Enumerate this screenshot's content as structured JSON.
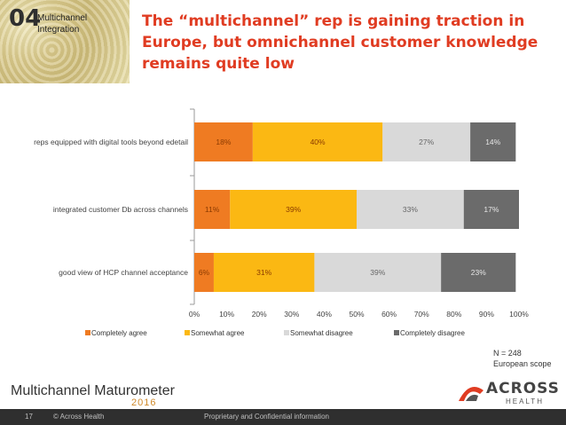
{
  "section": {
    "number": "04",
    "label_line1": "Multichannel",
    "label_line2": "Integration"
  },
  "headline": "The “multichannel” rep is gaining traction in Europe, but omnichannel customer knowledge remains quite low",
  "chart_data": {
    "type": "bar",
    "orientation": "horizontal",
    "stacked": true,
    "categories": [
      "reps equipped with digital tools beyond edetail",
      "integrated customer Db across channels",
      "good view of HCP channel acceptance"
    ],
    "series": [
      {
        "name": "Completely agree",
        "color": "#ef7b22",
        "values": [
          18,
          11,
          6
        ]
      },
      {
        "name": "Somewhat agree",
        "color": "#fbb813",
        "values": [
          40,
          39,
          31
        ]
      },
      {
        "name": "Somewhat disagree",
        "color": "#d9d9d9",
        "values": [
          27,
          33,
          39
        ]
      },
      {
        "name": "Completely disagree",
        "color": "#6b6b6b",
        "values": [
          14,
          17,
          23
        ]
      }
    ],
    "data_labels": [
      [
        "18%",
        "40%",
        "27%",
        "14%"
      ],
      [
        "11%",
        "39%",
        "33%",
        "17%"
      ],
      [
        "6%",
        "31%",
        "39%",
        "23%"
      ]
    ],
    "x_ticks": [
      "0%",
      "10%",
      "20%",
      "30%",
      "40%",
      "50%",
      "60%",
      "70%",
      "80%",
      "90%",
      "100%"
    ],
    "xlim": [
      0,
      100
    ],
    "legend_position": "bottom"
  },
  "note": {
    "line1": "N = 248",
    "line2": "European scope"
  },
  "brand": {
    "name": "Multichannel Maturometer",
    "year": "2016"
  },
  "logo": {
    "name": "ACROSS",
    "sub": "HEALTH"
  },
  "footer": {
    "page": "17",
    "copyright": "© Across Health",
    "confidential": "Proprietary and Confidential information"
  }
}
